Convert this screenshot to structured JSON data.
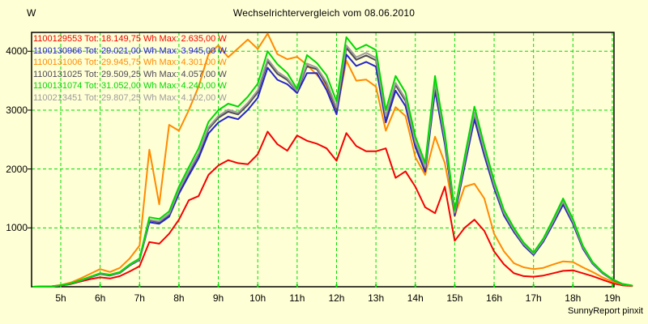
{
  "chart_data": {
    "type": "line",
    "title": "Wechselrichtervergleich vom 08.06.2010",
    "ylabel": "W",
    "footer": "SunnyReport pinxit",
    "grid": true,
    "grid_color": "#00DC00",
    "legend_position": "top-left-inside",
    "ylim": [
      0,
      4320
    ],
    "xlim_hours": [
      4.28,
      19.08
    ],
    "y_tick_labels": [
      "1000",
      "2000",
      "3000",
      "4000"
    ],
    "x_tick_labels": [
      "5h",
      "6h",
      "7h",
      "8h",
      "9h",
      "10h",
      "11h",
      "12h",
      "13h",
      "14h",
      "15h",
      "16h",
      "17h",
      "18h",
      "19h"
    ],
    "x_hours": [
      4.3,
      4.75,
      5.0,
      5.25,
      5.5,
      5.75,
      6.0,
      6.25,
      6.5,
      6.75,
      7.0,
      7.25,
      7.5,
      7.75,
      8.0,
      8.25,
      8.5,
      8.75,
      9.0,
      9.25,
      9.5,
      9.75,
      10.0,
      10.25,
      10.5,
      10.75,
      11.0,
      11.25,
      11.5,
      11.75,
      12.0,
      12.25,
      12.5,
      12.75,
      13.0,
      13.25,
      13.5,
      13.75,
      14.0,
      14.25,
      14.5,
      14.75,
      15.0,
      15.25,
      15.5,
      15.75,
      16.0,
      16.25,
      16.5,
      16.75,
      17.0,
      17.25,
      17.5,
      17.75,
      18.0,
      18.25,
      18.5,
      18.75,
      19.0,
      19.25,
      19.5
    ],
    "series": [
      {
        "id": "1100129553",
        "color": "#F40000",
        "legend": "1100129553 Tot: 18.149,75 Wh Max: 2.635,00 W",
        "tot_wh": "18.149,75",
        "max_w": "2.635,00",
        "values": [
          0,
          5,
          20,
          45,
          90,
          130,
          160,
          140,
          180,
          260,
          350,
          760,
          730,
          900,
          1140,
          1470,
          1540,
          1900,
          2060,
          2150,
          2100,
          2080,
          2250,
          2635,
          2420,
          2310,
          2570,
          2480,
          2430,
          2350,
          2140,
          2610,
          2390,
          2300,
          2300,
          2350,
          1850,
          1960,
          1700,
          1350,
          1250,
          1700,
          780,
          1000,
          1140,
          950,
          600,
          380,
          230,
          180,
          170,
          190,
          230,
          270,
          280,
          230,
          180,
          120,
          60,
          25,
          10
        ]
      },
      {
        "id": "1100130966",
        "color": "#2222CC",
        "legend": "1100130966 Tot: 29.021,00 Wh Max: 3.945,00 W",
        "tot_wh": "29.021,00",
        "max_w": "3.945,00",
        "values": [
          0,
          5,
          20,
          50,
          100,
          160,
          215,
          190,
          235,
          360,
          455,
          1095,
          1070,
          1190,
          1580,
          1890,
          2185,
          2605,
          2790,
          2890,
          2845,
          3005,
          3210,
          3720,
          3515,
          3440,
          3290,
          3630,
          3630,
          3340,
          2930,
          3945,
          3750,
          3820,
          3740,
          2790,
          3330,
          3070,
          2370,
          1955,
          3330,
          2420,
          1210,
          2045,
          2845,
          2230,
          1675,
          1210,
          930,
          700,
          540,
          765,
          1070,
          1395,
          1070,
          650,
          390,
          230,
          120,
          45,
          18
        ]
      },
      {
        "id": "1100131006",
        "color": "#FF8A00",
        "legend": "1100131006 Tot: 29.945,75 Wh Max: 4.301,00 W",
        "tot_wh": "29.945,75",
        "max_w": "4.301,00",
        "values": [
          0,
          5,
          30,
          70,
          140,
          220,
          300,
          250,
          320,
          480,
          700,
          2330,
          1400,
          2750,
          2650,
          3000,
          3400,
          3950,
          4100,
          3900,
          4050,
          4200,
          4040,
          4301,
          3950,
          3865,
          3905,
          3770,
          3600,
          3400,
          2950,
          3840,
          3500,
          3520,
          3400,
          2650,
          3050,
          2900,
          2200,
          1900,
          2550,
          2100,
          1200,
          1700,
          1750,
          1500,
          900,
          600,
          400,
          330,
          300,
          320,
          380,
          430,
          420,
          330,
          250,
          160,
          90,
          40,
          15
        ]
      },
      {
        "id": "1100131025",
        "color": "#4E4A58",
        "legend": "1100131025 Tot: 29.509,25 Wh Max: 4.057,00 W",
        "tot_wh": "29.509,25",
        "max_w": "4.057,00",
        "values": [
          0,
          5,
          22,
          52,
          104,
          164,
          221,
          196,
          241,
          368,
          465,
          1127,
          1100,
          1224,
          1626,
          1943,
          2248,
          2679,
          2870,
          2974,
          2927,
          3091,
          3301,
          3826,
          3616,
          3512,
          3317,
          3746,
          3695,
          3435,
          3014,
          4057,
          3856,
          3930,
          3846,
          2870,
          3425,
          3157,
          2438,
          2010,
          3425,
          2488,
          1244,
          2104,
          2927,
          2295,
          1723,
          1244,
          957,
          719,
          555,
          786,
          1100,
          1435,
          1100,
          669,
          401,
          238,
          124,
          47,
          19
        ]
      },
      {
        "id": "1100131074",
        "color": "#00D800",
        "legend": "1100131074 Tot: 31.052,00 Wh Max: 4.240,00 W",
        "tot_wh": "31.052,00",
        "max_w": "4.240,00",
        "values": [
          0,
          5,
          25,
          55,
          110,
          170,
          230,
          205,
          250,
          380,
          480,
          1180,
          1150,
          1280,
          1700,
          2030,
          2350,
          2800,
          3000,
          3110,
          3060,
          3230,
          3450,
          4000,
          3780,
          3630,
          3360,
          3935,
          3800,
          3590,
          3150,
          4240,
          4030,
          4110,
          4020,
          3000,
          3580,
          3300,
          2550,
          2100,
          3580,
          2600,
          1300,
          2200,
          3060,
          2400,
          1800,
          1300,
          1000,
          750,
          580,
          820,
          1150,
          1500,
          1150,
          700,
          420,
          250,
          130,
          50,
          20
        ]
      },
      {
        "id": "1100213451",
        "color": "#9C9C9C",
        "legend": "1100213451 Tot: 29.807,25 Wh Max: 4.102,00 W",
        "tot_wh": "29.807,25",
        "max_w": "4.102,00",
        "values": [
          0,
          5,
          23,
          53,
          105,
          165,
          223,
          198,
          243,
          371,
          468,
          1140,
          1112,
          1238,
          1644,
          1964,
          2272,
          2708,
          2901,
          3007,
          2959,
          3124,
          3337,
          3868,
          3655,
          3541,
          3327,
          3792,
          3720,
          3473,
          3047,
          4102,
          3898,
          3974,
          3888,
          2901,
          3463,
          3192,
          2465,
          2032,
          3463,
          2515,
          1258,
          2127,
          2959,
          2320,
          1741,
          1258,
          967,
          727,
          561,
          794,
          1112,
          1451,
          1112,
          677,
          406,
          241,
          125,
          48,
          19
        ]
      }
    ]
  }
}
